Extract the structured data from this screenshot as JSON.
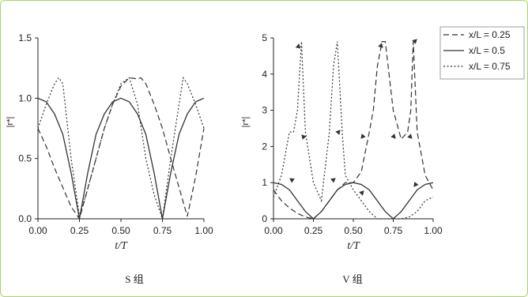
{
  "chart_data": [
    {
      "type": "line",
      "caption": "S 组",
      "xlabel": "t/T",
      "ylabel": "|r*|",
      "xlim": [
        0,
        1
      ],
      "ylim": [
        0,
        1.5
      ],
      "xticks": [
        "0.00",
        "0.25",
        "0.50",
        "0.75",
        "1.00"
      ],
      "yticks": [
        "0.0",
        "0.5",
        "1.0",
        "1.5"
      ],
      "series": [
        {
          "name": "x/L = 0.25",
          "style": "dashed",
          "x": [
            0,
            0.05,
            0.1,
            0.15,
            0.2,
            0.25,
            0.3,
            0.35,
            0.4,
            0.45,
            0.5,
            0.55,
            0.6,
            0.62,
            0.65,
            0.7,
            0.75,
            0.8,
            0.85,
            0.9,
            0.95,
            1.0
          ],
          "y": [
            0.75,
            0.6,
            0.42,
            0.26,
            0.1,
            0.0,
            0.25,
            0.5,
            0.75,
            0.95,
            1.1,
            1.17,
            1.16,
            1.17,
            1.12,
            0.95,
            0.75,
            0.5,
            0.26,
            0.02,
            0.35,
            0.75
          ]
        },
        {
          "name": "x/L = 0.5",
          "style": "solid",
          "x": [
            0,
            0.05,
            0.1,
            0.15,
            0.2,
            0.25,
            0.3,
            0.35,
            0.4,
            0.45,
            0.5,
            0.55,
            0.6,
            0.65,
            0.7,
            0.75,
            0.8,
            0.85,
            0.9,
            0.95,
            1.0
          ],
          "y": [
            1.0,
            0.97,
            0.87,
            0.7,
            0.38,
            0.0,
            0.38,
            0.7,
            0.87,
            0.97,
            1.0,
            0.97,
            0.87,
            0.7,
            0.38,
            0.0,
            0.38,
            0.7,
            0.87,
            0.97,
            1.0
          ]
        },
        {
          "name": "x/L = 0.75",
          "style": "dotted",
          "x": [
            0,
            0.05,
            0.1,
            0.125,
            0.15,
            0.2,
            0.25,
            0.3,
            0.35,
            0.4,
            0.45,
            0.5,
            0.55,
            0.6,
            0.65,
            0.7,
            0.75,
            0.8,
            0.85,
            0.875,
            0.9,
            0.95,
            1.0
          ],
          "y": [
            0.75,
            0.95,
            1.12,
            1.17,
            1.12,
            0.5,
            0.02,
            0.25,
            0.5,
            0.75,
            0.95,
            1.12,
            1.17,
            0.95,
            0.5,
            0.2,
            0.0,
            0.5,
            0.95,
            1.17,
            1.12,
            0.95,
            0.75
          ]
        }
      ]
    },
    {
      "type": "line",
      "caption": "V 组",
      "xlabel": "t/T",
      "ylabel": "|r*|",
      "xlim": [
        0,
        1
      ],
      "ylim": [
        0,
        5
      ],
      "xticks": [
        "0.00",
        "0.25",
        "0.50",
        "0.75",
        "1.00"
      ],
      "yticks": [
        "0",
        "1",
        "2",
        "3",
        "4",
        "5"
      ],
      "legend": [
        "x/L = 0.25",
        "x/L = 0.5",
        "x/L = 0.75"
      ],
      "legend_position": "top-right",
      "series": [
        {
          "name": "x/L = 0.25",
          "style": "dashed",
          "x": [
            0,
            0.05,
            0.1,
            0.15,
            0.2,
            0.25,
            0.3,
            0.35,
            0.4,
            0.45,
            0.5,
            0.55,
            0.6,
            0.625,
            0.65,
            0.68,
            0.7,
            0.75,
            0.8,
            0.84,
            0.86,
            0.875,
            0.9,
            0.95,
            1.0
          ],
          "y": [
            0.8,
            0.5,
            0.3,
            0.15,
            0.05,
            0.0,
            0.2,
            0.5,
            0.8,
            1.0,
            1.0,
            1.3,
            2.4,
            3.0,
            4.2,
            4.9,
            4.9,
            3.0,
            2.2,
            2.4,
            3.0,
            4.9,
            2.4,
            1.2,
            0.8
          ]
        },
        {
          "name": "x/L = 0.5",
          "style": "solid",
          "x": [
            0,
            0.05,
            0.1,
            0.15,
            0.2,
            0.25,
            0.3,
            0.35,
            0.4,
            0.45,
            0.5,
            0.55,
            0.6,
            0.65,
            0.7,
            0.75,
            0.8,
            0.85,
            0.9,
            0.95,
            1.0
          ],
          "y": [
            1.0,
            0.95,
            0.8,
            0.5,
            0.2,
            0.0,
            0.2,
            0.5,
            0.8,
            0.95,
            1.0,
            0.95,
            0.8,
            0.5,
            0.2,
            0.0,
            0.2,
            0.5,
            0.8,
            0.95,
            1.0
          ]
        },
        {
          "name": "x/L = 0.75",
          "style": "dotted",
          "x": [
            0,
            0.05,
            0.1,
            0.125,
            0.15,
            0.175,
            0.2,
            0.25,
            0.3,
            0.35,
            0.375,
            0.4,
            0.43,
            0.45,
            0.5,
            0.55,
            0.6,
            0.65,
            0.7,
            0.75,
            0.8,
            0.85,
            0.9,
            0.95,
            1.0
          ],
          "y": [
            0.6,
            1.2,
            2.4,
            2.4,
            3.0,
            4.9,
            2.4,
            1.0,
            0.5,
            2.4,
            4.2,
            4.9,
            2.4,
            1.2,
            0.8,
            0.5,
            0.2,
            0.0,
            0.0,
            0.0,
            0.0,
            0.05,
            0.2,
            0.5,
            0.6
          ]
        }
      ]
    }
  ]
}
